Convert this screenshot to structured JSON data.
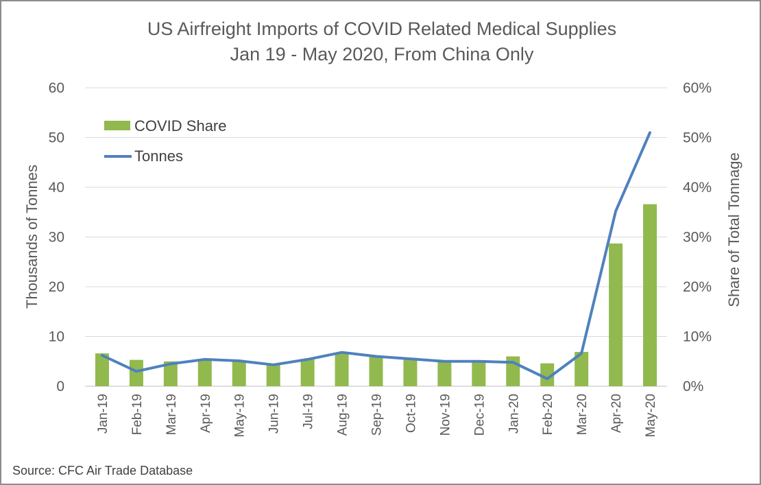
{
  "chart_data": {
    "type": "bar+line",
    "title": "US Airfreight Imports of COVID Related Medical Supplies",
    "subtitle": "Jan 19 - May 2020, From China Only",
    "categories": [
      "Jan-19",
      "Feb-19",
      "Mar-19",
      "Apr-19",
      "May-19",
      "Jun-19",
      "Jul-19",
      "Aug-19",
      "Sep-19",
      "Oct-19",
      "Nov-19",
      "Dec-19",
      "Jan-20",
      "Feb-20",
      "Mar-20",
      "Apr-20",
      "May-20"
    ],
    "series": [
      {
        "name": "COVID Share",
        "type": "bar",
        "axis": "right",
        "color": "#92b94e",
        "values": [
          6.6,
          5.3,
          5.0,
          5.3,
          5.1,
          4.4,
          5.4,
          6.7,
          5.9,
          5.7,
          5.0,
          5.0,
          6.0,
          4.6,
          6.9,
          28.7,
          36.6
        ]
      },
      {
        "name": "Tonnes",
        "type": "line",
        "axis": "left",
        "color": "#4f81bd",
        "values": [
          6.2,
          3.0,
          4.5,
          5.4,
          5.1,
          4.3,
          5.4,
          6.8,
          6.0,
          5.5,
          5.0,
          5.0,
          4.8,
          1.5,
          6.6,
          35.2,
          51.0
        ]
      }
    ],
    "ylabel": "Thousands of Tonnes",
    "y2label": "Share of Total Tonnage",
    "ylim": [
      0,
      60
    ],
    "y2lim": [
      0,
      60
    ],
    "yticks": [
      "0",
      "10",
      "20",
      "30",
      "40",
      "50",
      "60"
    ],
    "y2ticks": [
      "0%",
      "10%",
      "20%",
      "30%",
      "40%",
      "50%",
      "60%"
    ],
    "grid": true,
    "legend": "top-left"
  },
  "source_note": "Source: CFC Air Trade Database"
}
